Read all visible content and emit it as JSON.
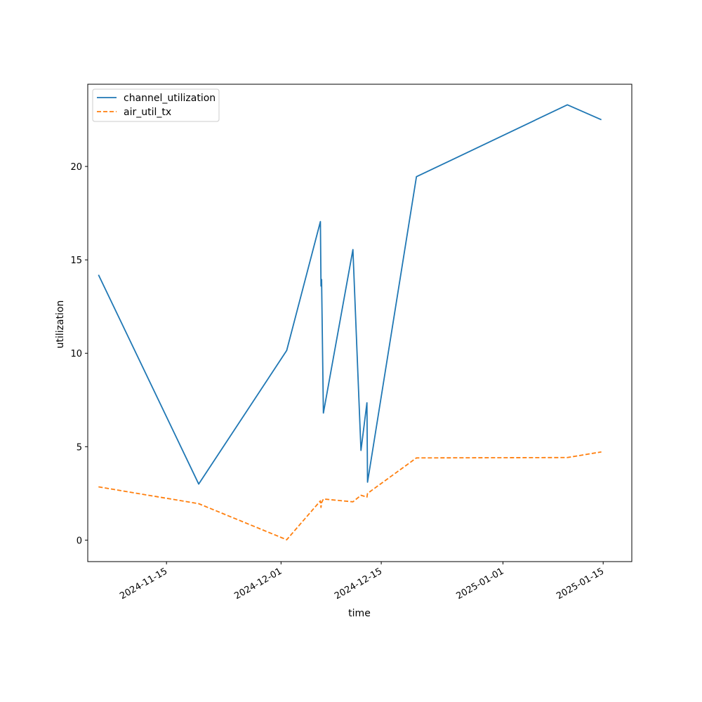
{
  "chart_data": {
    "type": "line",
    "xlabel": "time",
    "ylabel": "utilization",
    "x_ticks": [
      "2024-11-15",
      "2024-12-01",
      "2024-12-15",
      "2025-01-01",
      "2025-01-15"
    ],
    "y_ticks": [
      0,
      5,
      10,
      15,
      20
    ],
    "xlim": [
      "2024-11-04",
      "2025-01-19"
    ],
    "ylim": [
      -1.15,
      24.4
    ],
    "grid": false,
    "legend_position": "top-left",
    "series": [
      {
        "name": "channel_utilization",
        "color": "#1f77b4",
        "style": "solid",
        "points": [
          [
            "2024-11-05T12:00",
            14.2
          ],
          [
            "2024-11-19T12:00",
            3.0
          ],
          [
            "2024-12-01T19:00",
            10.15
          ],
          [
            "2024-12-06T12:00",
            17.05
          ],
          [
            "2024-12-06T14:00",
            13.6
          ],
          [
            "2024-12-06T16:00",
            13.95
          ],
          [
            "2024-12-06T22:00",
            6.8
          ],
          [
            "2024-12-11T01:00",
            15.55
          ],
          [
            "2024-12-12T04:00",
            4.8
          ],
          [
            "2024-12-13T00:00",
            7.35
          ],
          [
            "2024-12-13T02:00",
            3.1
          ],
          [
            "2024-12-19T22:00",
            19.45
          ],
          [
            "2025-01-10T00:00",
            23.3
          ],
          [
            "2025-01-14T18:00",
            22.5
          ]
        ]
      },
      {
        "name": "air_util_tx",
        "color": "#ff7f0e",
        "style": "dashed",
        "points": [
          [
            "2024-11-05T12:00",
            2.85
          ],
          [
            "2024-11-19T12:00",
            1.95
          ],
          [
            "2024-12-01T19:00",
            0.02
          ],
          [
            "2024-12-06T12:00",
            2.1
          ],
          [
            "2024-12-06T14:00",
            1.75
          ],
          [
            "2024-12-06T16:00",
            2.0
          ],
          [
            "2024-12-06T22:00",
            2.2
          ],
          [
            "2024-12-11T01:00",
            2.05
          ],
          [
            "2024-12-12T04:00",
            2.4
          ],
          [
            "2024-12-13T00:00",
            2.3
          ],
          [
            "2024-12-13T02:00",
            2.5
          ],
          [
            "2024-12-19T22:00",
            4.4
          ],
          [
            "2025-01-10T00:00",
            4.42
          ],
          [
            "2025-01-14T18:00",
            4.72
          ]
        ]
      }
    ]
  }
}
